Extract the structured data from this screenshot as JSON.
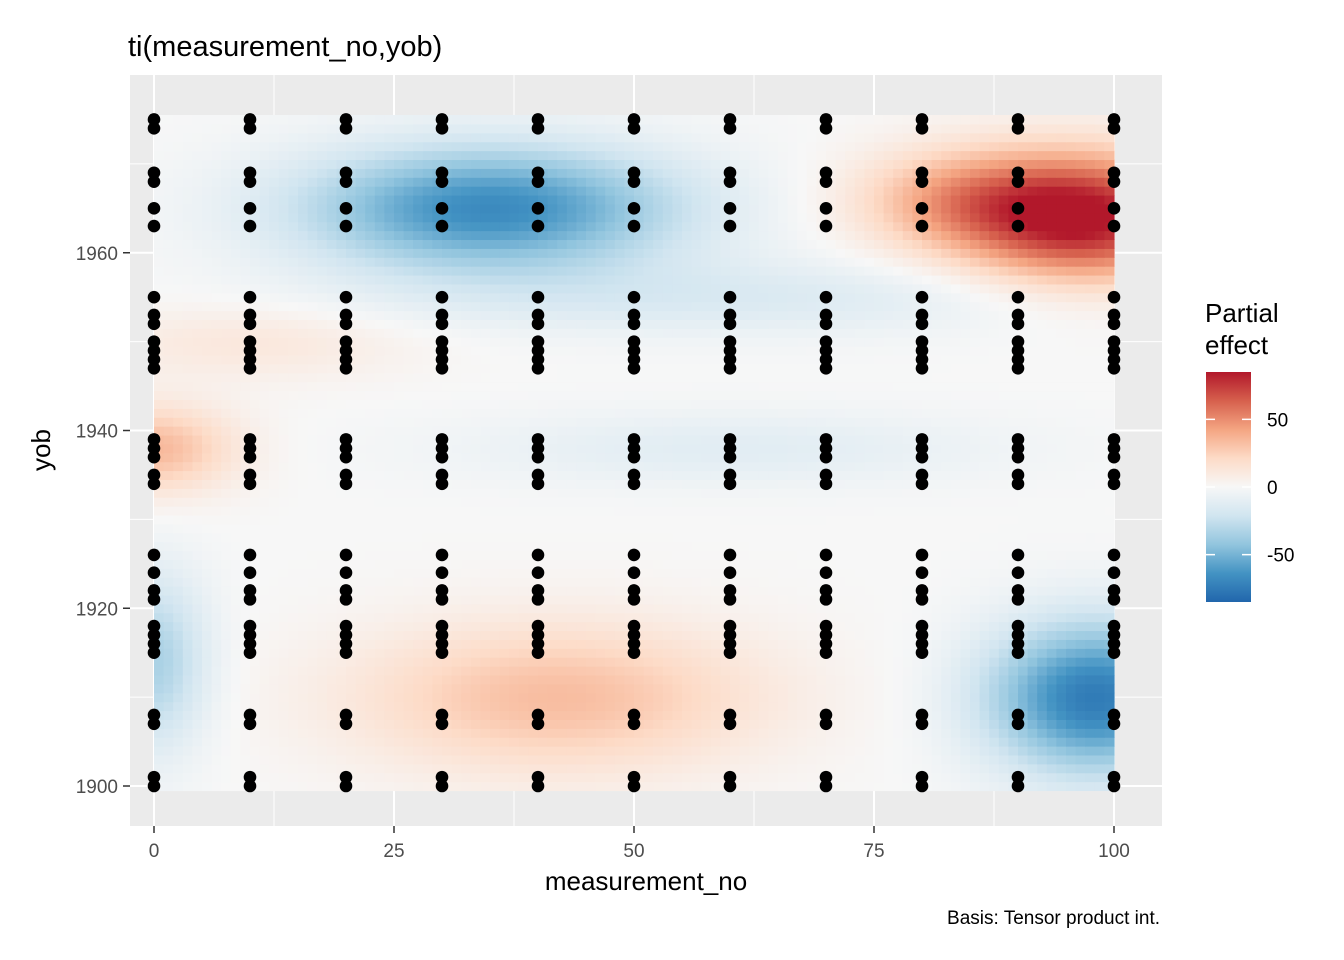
{
  "chart_data": {
    "type": "heatmap",
    "title": "ti(measurement_no,yob)",
    "xlabel": "measurement_no",
    "ylabel": "yob",
    "caption": "Basis: Tensor product int.",
    "xlim": [
      -2.5,
      105
    ],
    "ylim": [
      1895.5,
      1980
    ],
    "x_range": [
      0,
      100
    ],
    "y_range": [
      1899.5,
      1975.5
    ],
    "x_ticks": [
      0,
      25,
      50,
      75,
      100
    ],
    "x_tick_labels": [
      "0",
      "25",
      "50",
      "75",
      "100"
    ],
    "y_ticks": [
      1900,
      1920,
      1940,
      1960
    ],
    "y_tick_labels": [
      "1900",
      "1920",
      "1940",
      "1960"
    ],
    "grid": true,
    "legend": {
      "title_lines": [
        "Partial",
        "effect"
      ],
      "placement": "right",
      "range": [
        -85,
        85
      ],
      "ticks": [
        50,
        0,
        -50
      ],
      "tick_labels": [
        "50",
        "0",
        "-50"
      ],
      "colors": [
        "#2166ac",
        "#4393c3",
        "#92c5de",
        "#d1e5f0",
        "#f7f7f7",
        "#fddbc7",
        "#f4a582",
        "#d6604d",
        "#b2182b"
      ]
    },
    "effect_centers": [
      {
        "x": 35,
        "y": 1965,
        "sx": 14,
        "sy": 5,
        "value": -68
      },
      {
        "x": 97,
        "y": 1964,
        "sx": 9,
        "sy": 5,
        "value": 85
      },
      {
        "x": 84,
        "y": 1966,
        "sx": 8,
        "sy": 4,
        "value": 35
      },
      {
        "x": 0,
        "y": 1938,
        "sx": 6,
        "sy": 3.5,
        "value": 35
      },
      {
        "x": 42,
        "y": 1910,
        "sx": 15,
        "sy": 6,
        "value": 33
      },
      {
        "x": 98,
        "y": 1910,
        "sx": 8,
        "sy": 6,
        "value": -75
      },
      {
        "x": 0,
        "y": 1914,
        "sx": 4,
        "sy": 7,
        "value": -35
      },
      {
        "x": 60,
        "y": 1938,
        "sx": 20,
        "sy": 3,
        "value": -12
      },
      {
        "x": 10,
        "y": 1950,
        "sx": 12,
        "sy": 3,
        "value": 12
      },
      {
        "x": 60,
        "y": 1955,
        "sx": 25,
        "sy": 3,
        "value": -15
      }
    ],
    "observation_x": [
      0,
      10,
      20,
      30,
      40,
      50,
      60,
      70,
      80,
      90,
      100
    ],
    "observation_y": [
      1900,
      1901,
      1907,
      1908,
      1915,
      1916,
      1917,
      1918,
      1921,
      1922,
      1924,
      1926,
      1934,
      1935,
      1937,
      1938,
      1939,
      1947,
      1948,
      1949,
      1950,
      1952,
      1953,
      1955,
      1963,
      1965,
      1968,
      1969,
      1974,
      1975
    ]
  }
}
